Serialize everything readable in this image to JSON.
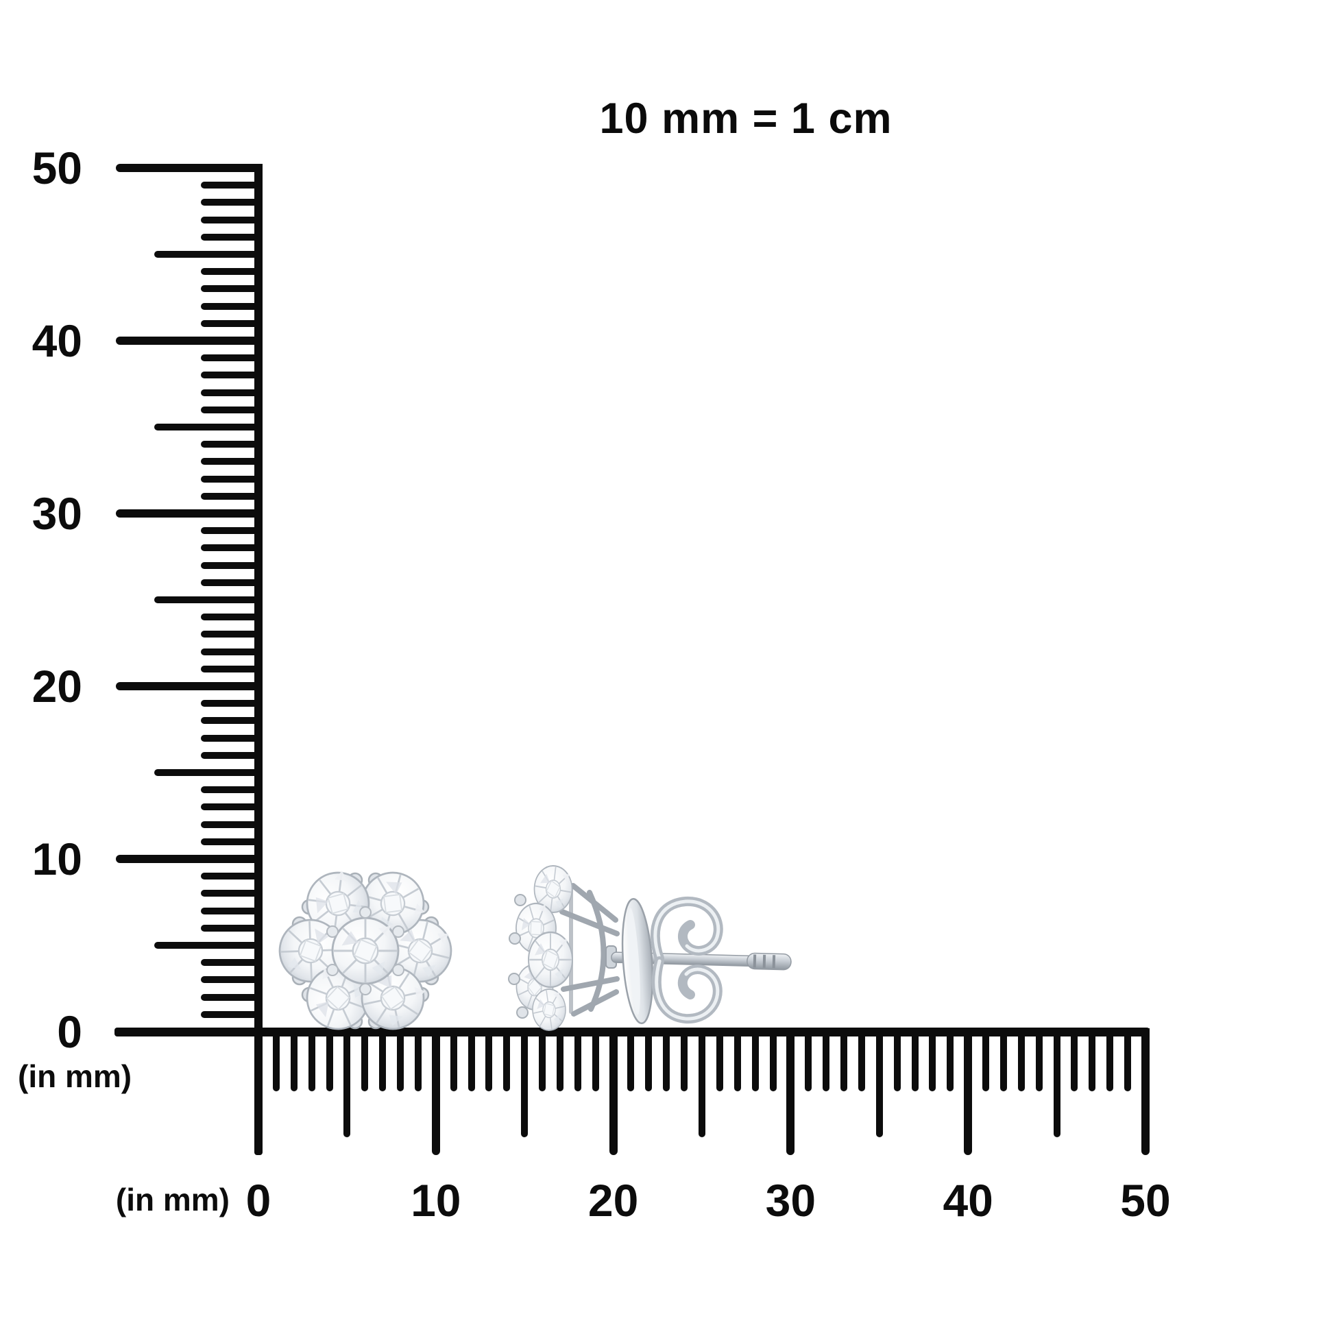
{
  "scale_note": {
    "text": "10 mm = 1 cm"
  },
  "rulers": {
    "vertical": {
      "unit_label": "(in mm)",
      "orientation": "vertical",
      "min_mm": 0,
      "max_mm": 50,
      "minor_step_mm": 1,
      "mid_step_mm": 5,
      "major_step_mm": 10,
      "tick_labels": [
        {
          "text": "50",
          "mm": 50
        },
        {
          "text": "40",
          "mm": 40
        },
        {
          "text": "30",
          "mm": 30
        },
        {
          "text": "20",
          "mm": 20
        },
        {
          "text": "10",
          "mm": 10
        },
        {
          "text": "0",
          "mm": 0
        }
      ]
    },
    "horizontal": {
      "unit_label": "(in mm)",
      "orientation": "horizontal",
      "min_mm": 0,
      "max_mm": 50,
      "minor_step_mm": 1,
      "mid_step_mm": 5,
      "major_step_mm": 10,
      "tick_labels": [
        {
          "text": "0",
          "mm": 0
        },
        {
          "text": "10",
          "mm": 10
        },
        {
          "text": "20",
          "mm": 20
        },
        {
          "text": "30",
          "mm": 30
        },
        {
          "text": "40",
          "mm": 40
        },
        {
          "text": "50",
          "mm": 50
        }
      ]
    }
  },
  "subject": {
    "description": "Pair of round-diamond flower-cluster stud earrings in white metal shown at millimeter scale: front view cluster of 7 stones and side view with post, disc and butterfly friction back",
    "front_view_stone_count": 7
  },
  "colors": {
    "ink": "#0c0c0c",
    "background": "#ffffff",
    "metal_light": "#f3f5f7",
    "metal_mid": "#c7cdd4",
    "metal_dark": "#959da6"
  }
}
